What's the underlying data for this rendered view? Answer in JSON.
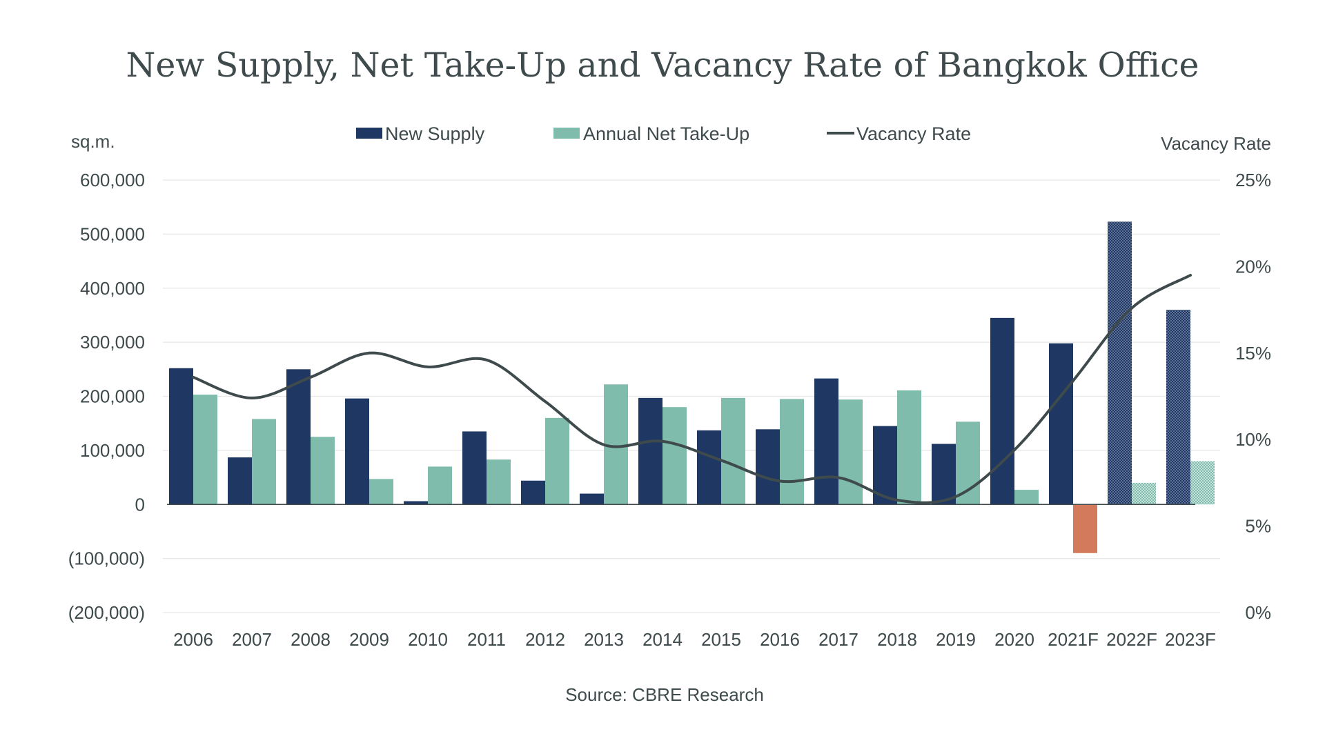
{
  "chart_data": {
    "type": "bar",
    "title": "New Supply, Net Take-Up and Vacancy Rate of Bangkok Office",
    "source": "Source: CBRE Research",
    "ylabel": "sq.m.",
    "y2label": "Vacancy Rate",
    "ylim": [
      -200000,
      600000
    ],
    "y2lim": [
      0,
      25
    ],
    "yticks": [
      "600,000",
      "500,000",
      "400,000",
      "300,000",
      "200,000",
      "100,000",
      "0",
      "(100,000)",
      "(200,000)"
    ],
    "yticks_values": [
      600000,
      500000,
      400000,
      300000,
      200000,
      100000,
      0,
      -100000,
      -200000
    ],
    "y2ticks": [
      "25%",
      "20%",
      "15%",
      "10%",
      "5%",
      "0%"
    ],
    "y2ticks_values": [
      25,
      20,
      15,
      10,
      5,
      0
    ],
    "categories": [
      "2006",
      "2007",
      "2008",
      "2009",
      "2010",
      "2011",
      "2012",
      "2013",
      "2014",
      "2015",
      "2016",
      "2017",
      "2018",
      "2019",
      "2020",
      "2021F",
      "2022F",
      "2023F"
    ],
    "forecast_categories": [
      "2022F",
      "2023F"
    ],
    "legend": {
      "position": "top-center",
      "items": [
        "New Supply",
        "Annual Net Take-Up",
        "Vacancy Rate"
      ]
    },
    "series": [
      {
        "name": "New Supply",
        "type": "bar",
        "color": "#1f3763",
        "values": [
          252000,
          87000,
          250000,
          196000,
          6000,
          135000,
          44000,
          20000,
          197000,
          137000,
          139000,
          233000,
          145000,
          112000,
          345000,
          298000,
          523000,
          360000
        ]
      },
      {
        "name": "Annual Net Take-Up",
        "type": "bar",
        "color": "#80bcab",
        "negative_color": "#d47a5c",
        "values": [
          203000,
          158000,
          125000,
          47000,
          70000,
          83000,
          160000,
          222000,
          180000,
          197000,
          195000,
          194000,
          211000,
          153000,
          27000,
          -90000,
          40000,
          80000
        ]
      },
      {
        "name": "Vacancy Rate",
        "type": "line",
        "axis": "right",
        "color": "#3e4a4c",
        "values": [
          13.6,
          12.4,
          13.6,
          15.0,
          14.2,
          14.6,
          12.2,
          9.7,
          9.9,
          8.8,
          7.6,
          7.8,
          6.5,
          6.7,
          9.4,
          13.4,
          17.6,
          19.5
        ]
      }
    ]
  }
}
